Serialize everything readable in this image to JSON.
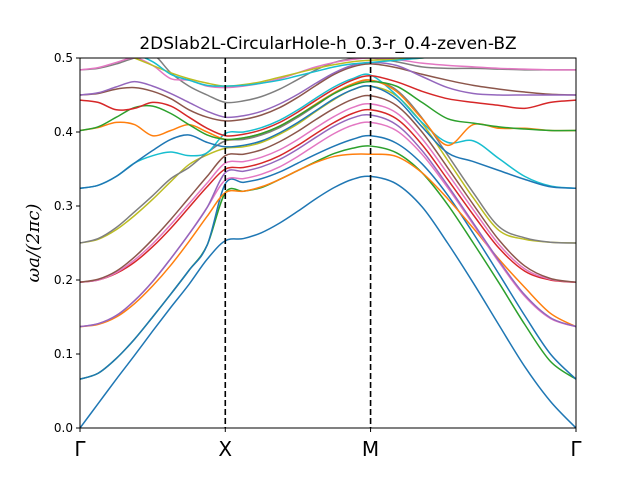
{
  "chart_data": {
    "type": "line",
    "title": "2DSlab2L-CircularHole-h_0.3-r_0.4-zeven-BZ",
    "ylabel": "ωa/(2πc)",
    "xlabel": "",
    "ylim": [
      0.0,
      0.5
    ],
    "yticks": [
      "0.0",
      "0.1",
      "0.2",
      "0.3",
      "0.4",
      "0.5"
    ],
    "xticks": [
      "Γ",
      "X",
      "M",
      "Γ"
    ],
    "x": [
      0,
      0.125,
      0.25,
      0.375,
      0.5,
      0.625,
      0.75,
      0.875,
      1,
      1.125,
      1.25,
      1.375,
      1.5,
      1.625,
      1.75,
      1.875,
      2,
      2.177,
      2.354,
      2.53,
      2.707,
      2.884,
      3.061,
      3.238,
      3.414
    ],
    "grid": false,
    "legend": "none",
    "series": [
      {
        "color": "#1f77b4",
        "values": [
          0.0,
          0.033,
          0.066,
          0.098,
          0.131,
          0.163,
          0.194,
          0.228,
          0.253,
          0.256,
          0.264,
          0.277,
          0.293,
          0.31,
          0.325,
          0.336,
          0.34,
          0.33,
          0.299,
          0.25,
          0.196,
          0.139,
          0.083,
          0.036,
          0.0
        ]
      },
      {
        "color": "#2ca02c",
        "values": [
          0.066,
          0.074,
          0.094,
          0.12,
          0.15,
          0.181,
          0.213,
          0.247,
          0.318,
          0.32,
          0.325,
          0.336,
          0.348,
          0.36,
          0.371,
          0.378,
          0.381,
          0.372,
          0.345,
          0.302,
          0.25,
          0.196,
          0.14,
          0.09,
          0.066
        ]
      },
      {
        "color": "#1f77b4",
        "values": [
          0.066,
          0.074,
          0.094,
          0.12,
          0.15,
          0.181,
          0.213,
          0.247,
          0.33,
          0.332,
          0.337,
          0.346,
          0.358,
          0.37,
          0.381,
          0.39,
          0.395,
          0.385,
          0.357,
          0.315,
          0.263,
          0.208,
          0.152,
          0.1,
          0.066
        ]
      },
      {
        "color": "#ff7f0e",
        "values": [
          0.137,
          0.14,
          0.15,
          0.168,
          0.192,
          0.22,
          0.252,
          0.286,
          0.318,
          0.32,
          0.326,
          0.336,
          0.348,
          0.359,
          0.367,
          0.37,
          0.37,
          0.367,
          0.345,
          0.31,
          0.27,
          0.228,
          0.19,
          0.155,
          0.137
        ]
      },
      {
        "color": "#e377c2",
        "values": [
          0.137,
          0.141,
          0.152,
          0.172,
          0.198,
          0.229,
          0.262,
          0.298,
          0.335,
          0.337,
          0.343,
          0.353,
          0.367,
          0.383,
          0.398,
          0.409,
          0.413,
          0.402,
          0.37,
          0.325,
          0.275,
          0.224,
          0.178,
          0.148,
          0.137
        ]
      },
      {
        "color": "#9467bd",
        "values": [
          0.137,
          0.141,
          0.152,
          0.172,
          0.198,
          0.229,
          0.262,
          0.298,
          0.345,
          0.347,
          0.353,
          0.363,
          0.377,
          0.393,
          0.408,
          0.419,
          0.423,
          0.41,
          0.375,
          0.328,
          0.277,
          0.226,
          0.18,
          0.149,
          0.137
        ]
      },
      {
        "color": "#d62728",
        "values": [
          0.197,
          0.2,
          0.209,
          0.224,
          0.245,
          0.27,
          0.298,
          0.326,
          0.35,
          0.352,
          0.358,
          0.368,
          0.382,
          0.398,
          0.413,
          0.425,
          0.43,
          0.418,
          0.383,
          0.336,
          0.288,
          0.243,
          0.212,
          0.2,
          0.197
        ]
      },
      {
        "color": "#e377c2",
        "values": [
          0.197,
          0.2,
          0.21,
          0.227,
          0.249,
          0.275,
          0.303,
          0.331,
          0.358,
          0.36,
          0.366,
          0.376,
          0.39,
          0.406,
          0.421,
          0.433,
          0.438,
          0.426,
          0.391,
          0.344,
          0.295,
          0.248,
          0.215,
          0.201,
          0.197
        ]
      },
      {
        "color": "#8c564b",
        "values": [
          0.197,
          0.201,
          0.212,
          0.231,
          0.255,
          0.282,
          0.311,
          0.34,
          0.368,
          0.37,
          0.376,
          0.387,
          0.401,
          0.417,
          0.432,
          0.444,
          0.449,
          0.436,
          0.4,
          0.352,
          0.302,
          0.254,
          0.219,
          0.202,
          0.197
        ]
      },
      {
        "color": "#bcbd22",
        "values": [
          0.25,
          0.255,
          0.268,
          0.287,
          0.309,
          0.333,
          0.356,
          0.369,
          0.378,
          0.38,
          0.386,
          0.397,
          0.411,
          0.428,
          0.444,
          0.457,
          0.462,
          0.449,
          0.412,
          0.362,
          0.311,
          0.267,
          0.255,
          0.251,
          0.25
        ]
      },
      {
        "color": "#7f7f7f",
        "values": [
          0.25,
          0.256,
          0.271,
          0.292,
          0.314,
          0.337,
          0.352,
          0.372,
          0.388,
          0.39,
          0.396,
          0.406,
          0.42,
          0.436,
          0.452,
          0.464,
          0.47,
          0.457,
          0.419,
          0.369,
          0.318,
          0.272,
          0.257,
          0.251,
          0.25
        ]
      },
      {
        "color": "#17becf",
        "values": [
          0.324,
          0.328,
          0.34,
          0.358,
          0.368,
          0.373,
          0.368,
          0.372,
          0.398,
          0.4,
          0.406,
          0.416,
          0.43,
          0.446,
          0.461,
          0.472,
          0.477,
          0.45,
          0.413,
          0.386,
          0.388,
          0.364,
          0.34,
          0.327,
          0.324
        ]
      },
      {
        "color": "#1f77b4",
        "values": [
          0.324,
          0.328,
          0.34,
          0.358,
          0.375,
          0.39,
          0.396,
          0.386,
          0.38,
          0.382,
          0.388,
          0.399,
          0.413,
          0.429,
          0.445,
          0.457,
          0.462,
          0.445,
          0.407,
          0.372,
          0.36,
          0.348,
          0.336,
          0.326,
          0.324
        ]
      },
      {
        "color": "#ff7f0e",
        "values": [
          0.402,
          0.406,
          0.413,
          0.41,
          0.395,
          0.402,
          0.41,
          0.4,
          0.39,
          0.392,
          0.398,
          0.408,
          0.422,
          0.438,
          0.453,
          0.465,
          0.47,
          0.455,
          0.418,
          0.382,
          0.41,
          0.405,
          0.405,
          0.402,
          0.402
        ]
      },
      {
        "color": "#2ca02c",
        "values": [
          0.402,
          0.407,
          0.42,
          0.433,
          0.435,
          0.425,
          0.41,
          0.396,
          0.39,
          0.392,
          0.398,
          0.408,
          0.422,
          0.437,
          0.452,
          0.463,
          0.468,
          0.462,
          0.44,
          0.418,
          0.412,
          0.407,
          0.404,
          0.402,
          0.402
        ]
      },
      {
        "color": "#d62728",
        "values": [
          0.443,
          0.44,
          0.43,
          0.432,
          0.44,
          0.435,
          0.42,
          0.405,
          0.395,
          0.397,
          0.403,
          0.413,
          0.427,
          0.443,
          0.458,
          0.47,
          0.476,
          0.468,
          0.455,
          0.445,
          0.44,
          0.436,
          0.432,
          0.44,
          0.443
        ]
      },
      {
        "color": "#8c564b",
        "values": [
          0.45,
          0.452,
          0.458,
          0.46,
          0.455,
          0.445,
          0.43,
          0.42,
          0.415,
          0.417,
          0.423,
          0.433,
          0.447,
          0.463,
          0.478,
          0.488,
          0.492,
          0.487,
          0.478,
          0.47,
          0.463,
          0.458,
          0.454,
          0.451,
          0.45
        ]
      },
      {
        "color": "#9467bd",
        "values": [
          0.45,
          0.453,
          0.461,
          0.468,
          0.462,
          0.452,
          0.44,
          0.428,
          0.42,
          0.422,
          0.428,
          0.438,
          0.451,
          0.466,
          0.48,
          0.49,
          0.494,
          0.49,
          0.475,
          0.46,
          0.452,
          0.45,
          0.45,
          0.45,
          0.45
        ]
      },
      {
        "color": "#7f7f7f",
        "values": [
          0.484,
          0.486,
          0.492,
          0.5,
          0.505,
          0.48,
          0.462,
          0.45,
          0.44,
          0.442,
          0.448,
          0.458,
          0.471,
          0.484,
          0.494,
          0.499,
          0.5,
          0.495,
          0.488,
          0.486,
          0.486,
          0.485,
          0.484,
          0.484,
          0.484
        ]
      },
      {
        "color": "#e377c2",
        "values": [
          0.484,
          0.487,
          0.494,
          0.5,
          0.49,
          0.472,
          0.47,
          0.462,
          0.46,
          0.462,
          0.466,
          0.472,
          0.48,
          0.488,
          0.494,
          0.498,
          0.5,
          0.498,
          0.493,
          0.49,
          0.488,
          0.486,
          0.485,
          0.484,
          0.484
        ]
      },
      {
        "color": "#bcbd22",
        "values": [
          0.5,
          0.505,
          0.51,
          0.5,
          0.49,
          0.48,
          0.472,
          0.466,
          0.462,
          0.464,
          0.468,
          0.474,
          0.48,
          0.486,
          0.491,
          0.495,
          0.497,
          0.498,
          0.5,
          0.505,
          0.51,
          0.51,
          0.51,
          0.51,
          0.51
        ]
      },
      {
        "color": "#17becf",
        "values": [
          0.51,
          0.51,
          0.508,
          0.505,
          0.495,
          0.478,
          0.47,
          0.463,
          0.462,
          0.463,
          0.466,
          0.47,
          0.476,
          0.482,
          0.488,
          0.492,
          0.494,
          0.497,
          0.5,
          0.503,
          0.506,
          0.508,
          0.509,
          0.51,
          0.51
        ]
      }
    ]
  }
}
